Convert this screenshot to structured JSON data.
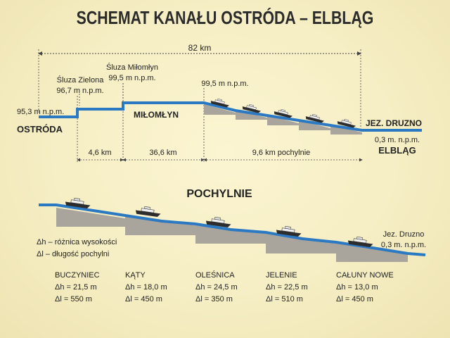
{
  "title": "SCHEMAT KANAŁU OSTRÓDA – ELBLĄG",
  "top": {
    "total_length": "82 km",
    "ostroda_level": "95,3 m n.p.m.",
    "ostroda": "OSTRÓDA",
    "sluza_zielona_name": "Śluza Zielona",
    "sluza_zielona_level": "96,7 m n.p.m.",
    "sluza_milomlyn_name": "Śluza Miłomłyn",
    "sluza_milomlyn_level": "99,5 m n.p.m.",
    "milomlyn": "MIŁOMŁYN",
    "plateau_level": "99,5 m n.p.m.",
    "druzno_name": "JEZ. DRUZNO",
    "druzno_level": "0,3 m. n.p.m.",
    "elblag": "ELBLĄG",
    "seg1": "4,6 km",
    "seg2": "36,6 km",
    "seg3": "9,6 km pochylnie"
  },
  "bottom": {
    "heading": "POCHYLNIE",
    "legend_dh": "Δh – różnica wysokości",
    "legend_dl": "Δl  – długość pochylni",
    "druzno_name": "Jez. Druzno",
    "druzno_level": "0,3 m. n.p.m.",
    "ramps": [
      {
        "name": "BUCZYNIEC",
        "dh": "Δh = 21,5 m",
        "dl": "Δl  = 550 m"
      },
      {
        "name": "KĄTY",
        "dh": "Δh = 18,0 m",
        "dl": "Δl  = 450 m"
      },
      {
        "name": "OLEŚNICA",
        "dh": "Δh = 24,5 m",
        "dl": "Δl  = 350 m"
      },
      {
        "name": "JELENIE",
        "dh": "Δh = 22,5 m",
        "dl": "Δl  = 510 m"
      },
      {
        "name": "CAŁUNY NOWE",
        "dh": "Δh = 13,0 m",
        "dl": "Δl  = 450 m"
      }
    ]
  },
  "colors": {
    "water": "#2b79c2",
    "ramp": "#a9a59c",
    "dim": "#444444"
  }
}
